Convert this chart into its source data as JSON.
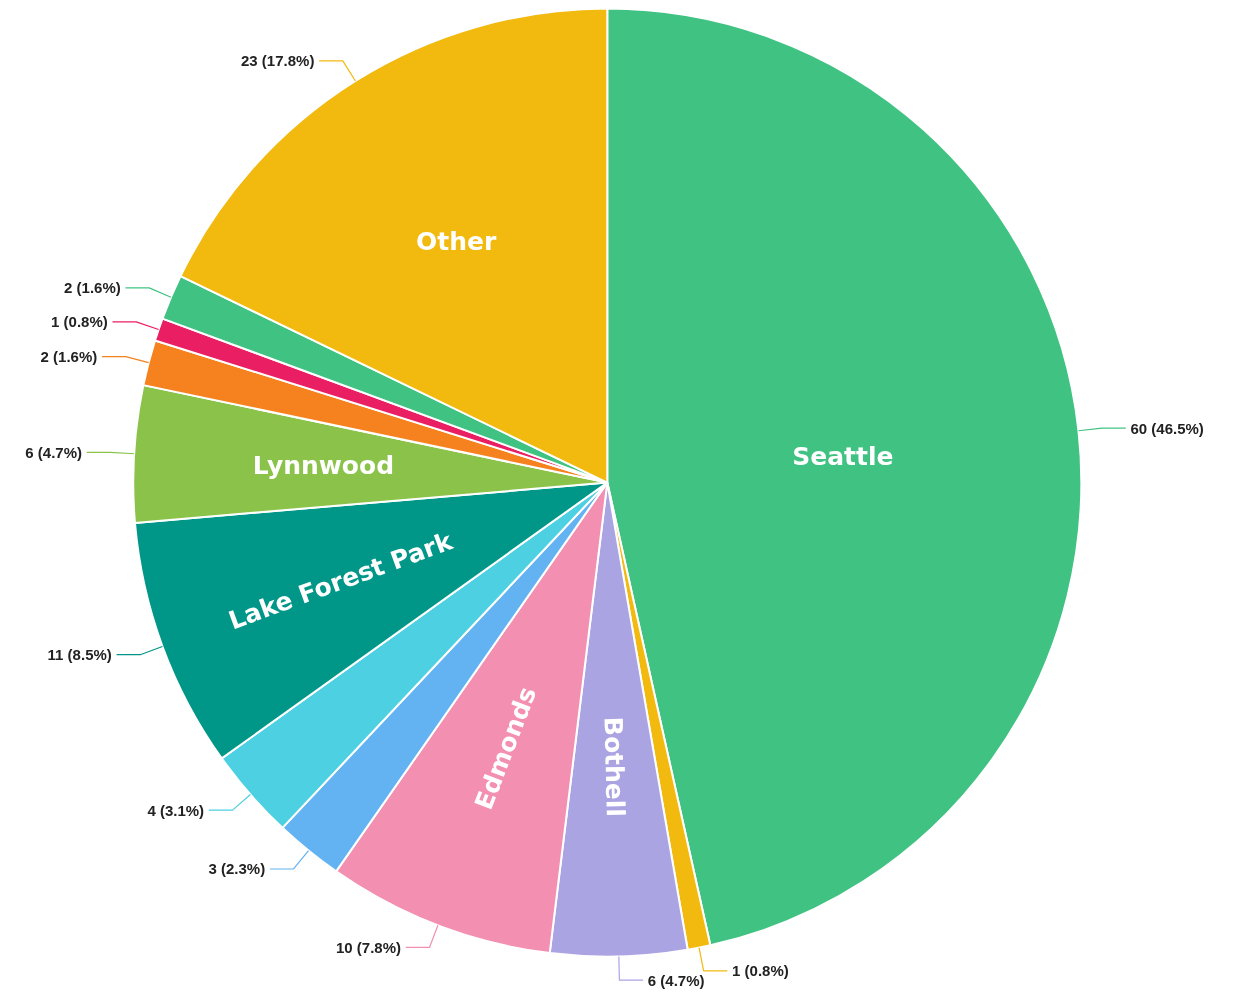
{
  "chart_data": {
    "type": "pie",
    "categories": [
      "Seattle",
      null,
      "Bothell",
      "Edmonds",
      null,
      null,
      "Lake Forest Park",
      "Lynnwood",
      null,
      null,
      null,
      "Other"
    ],
    "values": [
      60,
      1,
      6,
      10,
      3,
      4,
      11,
      6,
      2,
      1,
      2,
      23
    ],
    "colors": [
      "#40c382",
      "#f2b90f",
      "#aba4e3",
      "#f38fb0",
      "#63b3f2",
      "#4dd0e1",
      "#009688",
      "#8bc34a",
      "#f5821f",
      "#e91e63",
      "#40c382",
      "#f2b90f"
    ],
    "value_labels": [
      "60 (46.5%)",
      "1 (0.8%)",
      "6 (4.7%)",
      "10 (7.8%)",
      "3 (2.3%)",
      "4 (3.1%)",
      "11 (8.5%)",
      "6 (4.7%)",
      "2 (1.6%)",
      "1 (0.8%)",
      "2 (1.6%)",
      "23 (17.8%)"
    ],
    "legend": false
  }
}
